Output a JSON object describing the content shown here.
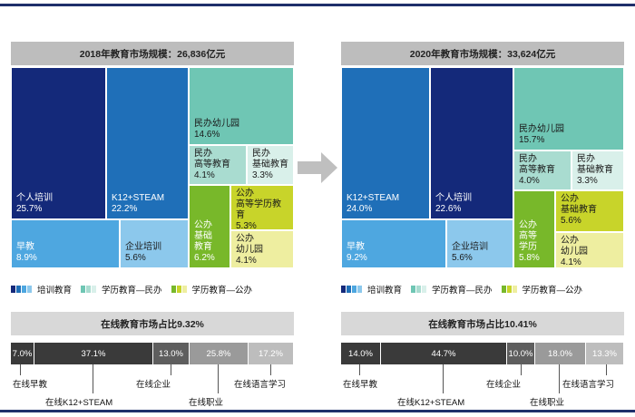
{
  "chart_data": [
    {
      "type": "treemap",
      "title": "2018年教育市场规模：26,836亿元",
      "legend": [
        "培训教育",
        "学历教育—民办",
        "学历教育—公办"
      ],
      "items": [
        {
          "label": "个人培训",
          "value": "25.7%",
          "group": "培训教育"
        },
        {
          "label": "K12+STEAM",
          "value": "22.2%",
          "group": "培训教育"
        },
        {
          "label": "早教",
          "value": "8.9%",
          "group": "培训教育"
        },
        {
          "label": "企业培训",
          "value": "5.6%",
          "group": "培训教育"
        },
        {
          "label": "民办幼儿园",
          "value": "14.6%",
          "group": "学历教育—民办"
        },
        {
          "label": "民办\n高等教育",
          "value": "4.1%",
          "group": "学历教育—民办"
        },
        {
          "label": "民办\n基础教育",
          "value": "3.3%",
          "group": "学历教育—民办"
        },
        {
          "label": "公办\n基础\n教育",
          "value": "6.2%",
          "group": "学历教育—公办"
        },
        {
          "label": "公办\n高等学历教育",
          "value": "5.3%",
          "group": "学历教育—公办"
        },
        {
          "label": "公办\n幼儿园",
          "value": "4.1%",
          "group": "学历教育—公办"
        }
      ],
      "online": {
        "title": "在线教育市场占比9.32%",
        "segments": [
          {
            "label": "在线早教",
            "value": "7.0%"
          },
          {
            "label": "在线K12+STEAM",
            "value": "37.1%"
          },
          {
            "label": "在线企业",
            "value": "13.0%"
          },
          {
            "label": "在线职业",
            "value": "25.8%"
          },
          {
            "label": "在线语言学习",
            "value": "17.2%"
          }
        ]
      }
    },
    {
      "type": "treemap",
      "title": "2020年教育市场规模：33,624亿元",
      "legend": [
        "培训教育",
        "学历教育—民办",
        "学历教育—公办"
      ],
      "items": [
        {
          "label": "K12+STEAM",
          "value": "24.0%",
          "group": "培训教育"
        },
        {
          "label": "个人培训",
          "value": "22.6%",
          "group": "培训教育"
        },
        {
          "label": "早教",
          "value": "9.2%",
          "group": "培训教育"
        },
        {
          "label": "企业培训",
          "value": "5.6%",
          "group": "培训教育"
        },
        {
          "label": "民办幼儿园",
          "value": "15.7%",
          "group": "学历教育—民办"
        },
        {
          "label": "民办\n高等教育",
          "value": "4.0%",
          "group": "学历教育—民办"
        },
        {
          "label": "民办\n基础教育",
          "value": "3.3%",
          "group": "学历教育—民办"
        },
        {
          "label": "公办\n高等\n学历",
          "value": "5.8%",
          "group": "学历教育—公办"
        },
        {
          "label": "公办\n基础教育",
          "value": "5.6%",
          "group": "学历教育—公办"
        },
        {
          "label": "公办\n幼儿园",
          "value": "4.1%",
          "group": "学历教育—公办"
        }
      ],
      "online": {
        "title": "在线教育市场占比10.41%",
        "segments": [
          {
            "label": "在线早教",
            "value": "14.0%"
          },
          {
            "label": "在线K12+STEAM",
            "value": "44.7%"
          },
          {
            "label": "在线企业",
            "value": "10.0%"
          },
          {
            "label": "在线职业",
            "value": "18.0%"
          },
          {
            "label": "在线语言学习",
            "value": "13.3%"
          }
        ]
      }
    }
  ],
  "colors": {
    "navy": "#14297a",
    "blue": "#1f6fb8",
    "lightblue": "#4ea7e0",
    "sky": "#8cc8ec",
    "teal": "#6fc6b4",
    "teal_light": "#a9dcd0",
    "teal_pale": "#d9f0ea",
    "green": "#78b82a",
    "yellowgreen": "#c8d42a",
    "pale_yellow": "#eeeea0",
    "bar_dark": "#3a3a3a",
    "bar_mid": "#5e5e5e",
    "bar_light": "#9a9a9a",
    "bar_lighter": "#bdbdbd",
    "arrow": "#bfbfbf"
  }
}
